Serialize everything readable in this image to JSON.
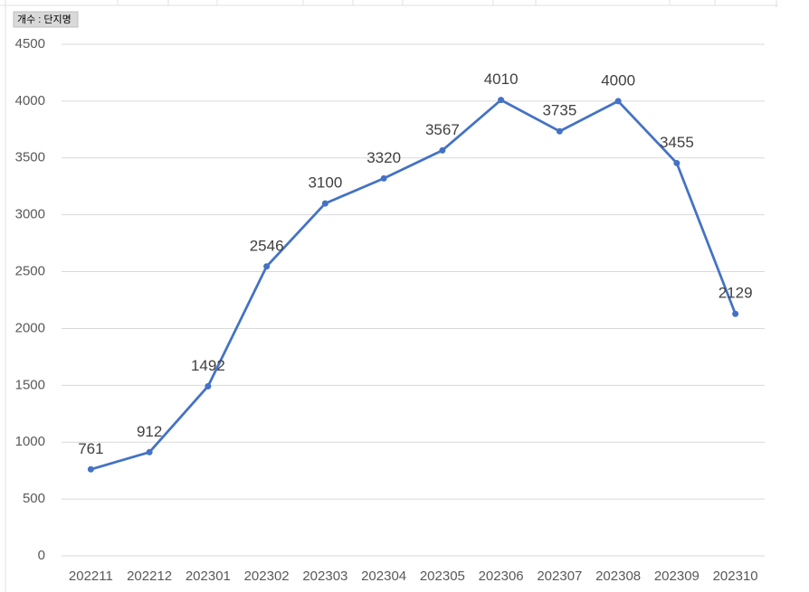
{
  "chart_data": {
    "type": "line",
    "field_button": "개수 : 단지명",
    "categories": [
      "202211",
      "202212",
      "202301",
      "202302",
      "202303",
      "202304",
      "202305",
      "202306",
      "202307",
      "202308",
      "202309",
      "202310"
    ],
    "values": [
      761,
      912,
      1492,
      2546,
      3100,
      3320,
      3567,
      4010,
      3735,
      4000,
      3455,
      2129
    ],
    "color": "#4472c4",
    "ylim": [
      0,
      4500
    ],
    "yticks": [
      0,
      500,
      1000,
      1500,
      2000,
      2500,
      3000,
      3500,
      4000,
      4500
    ],
    "grid": true,
    "data_labels": true
  }
}
